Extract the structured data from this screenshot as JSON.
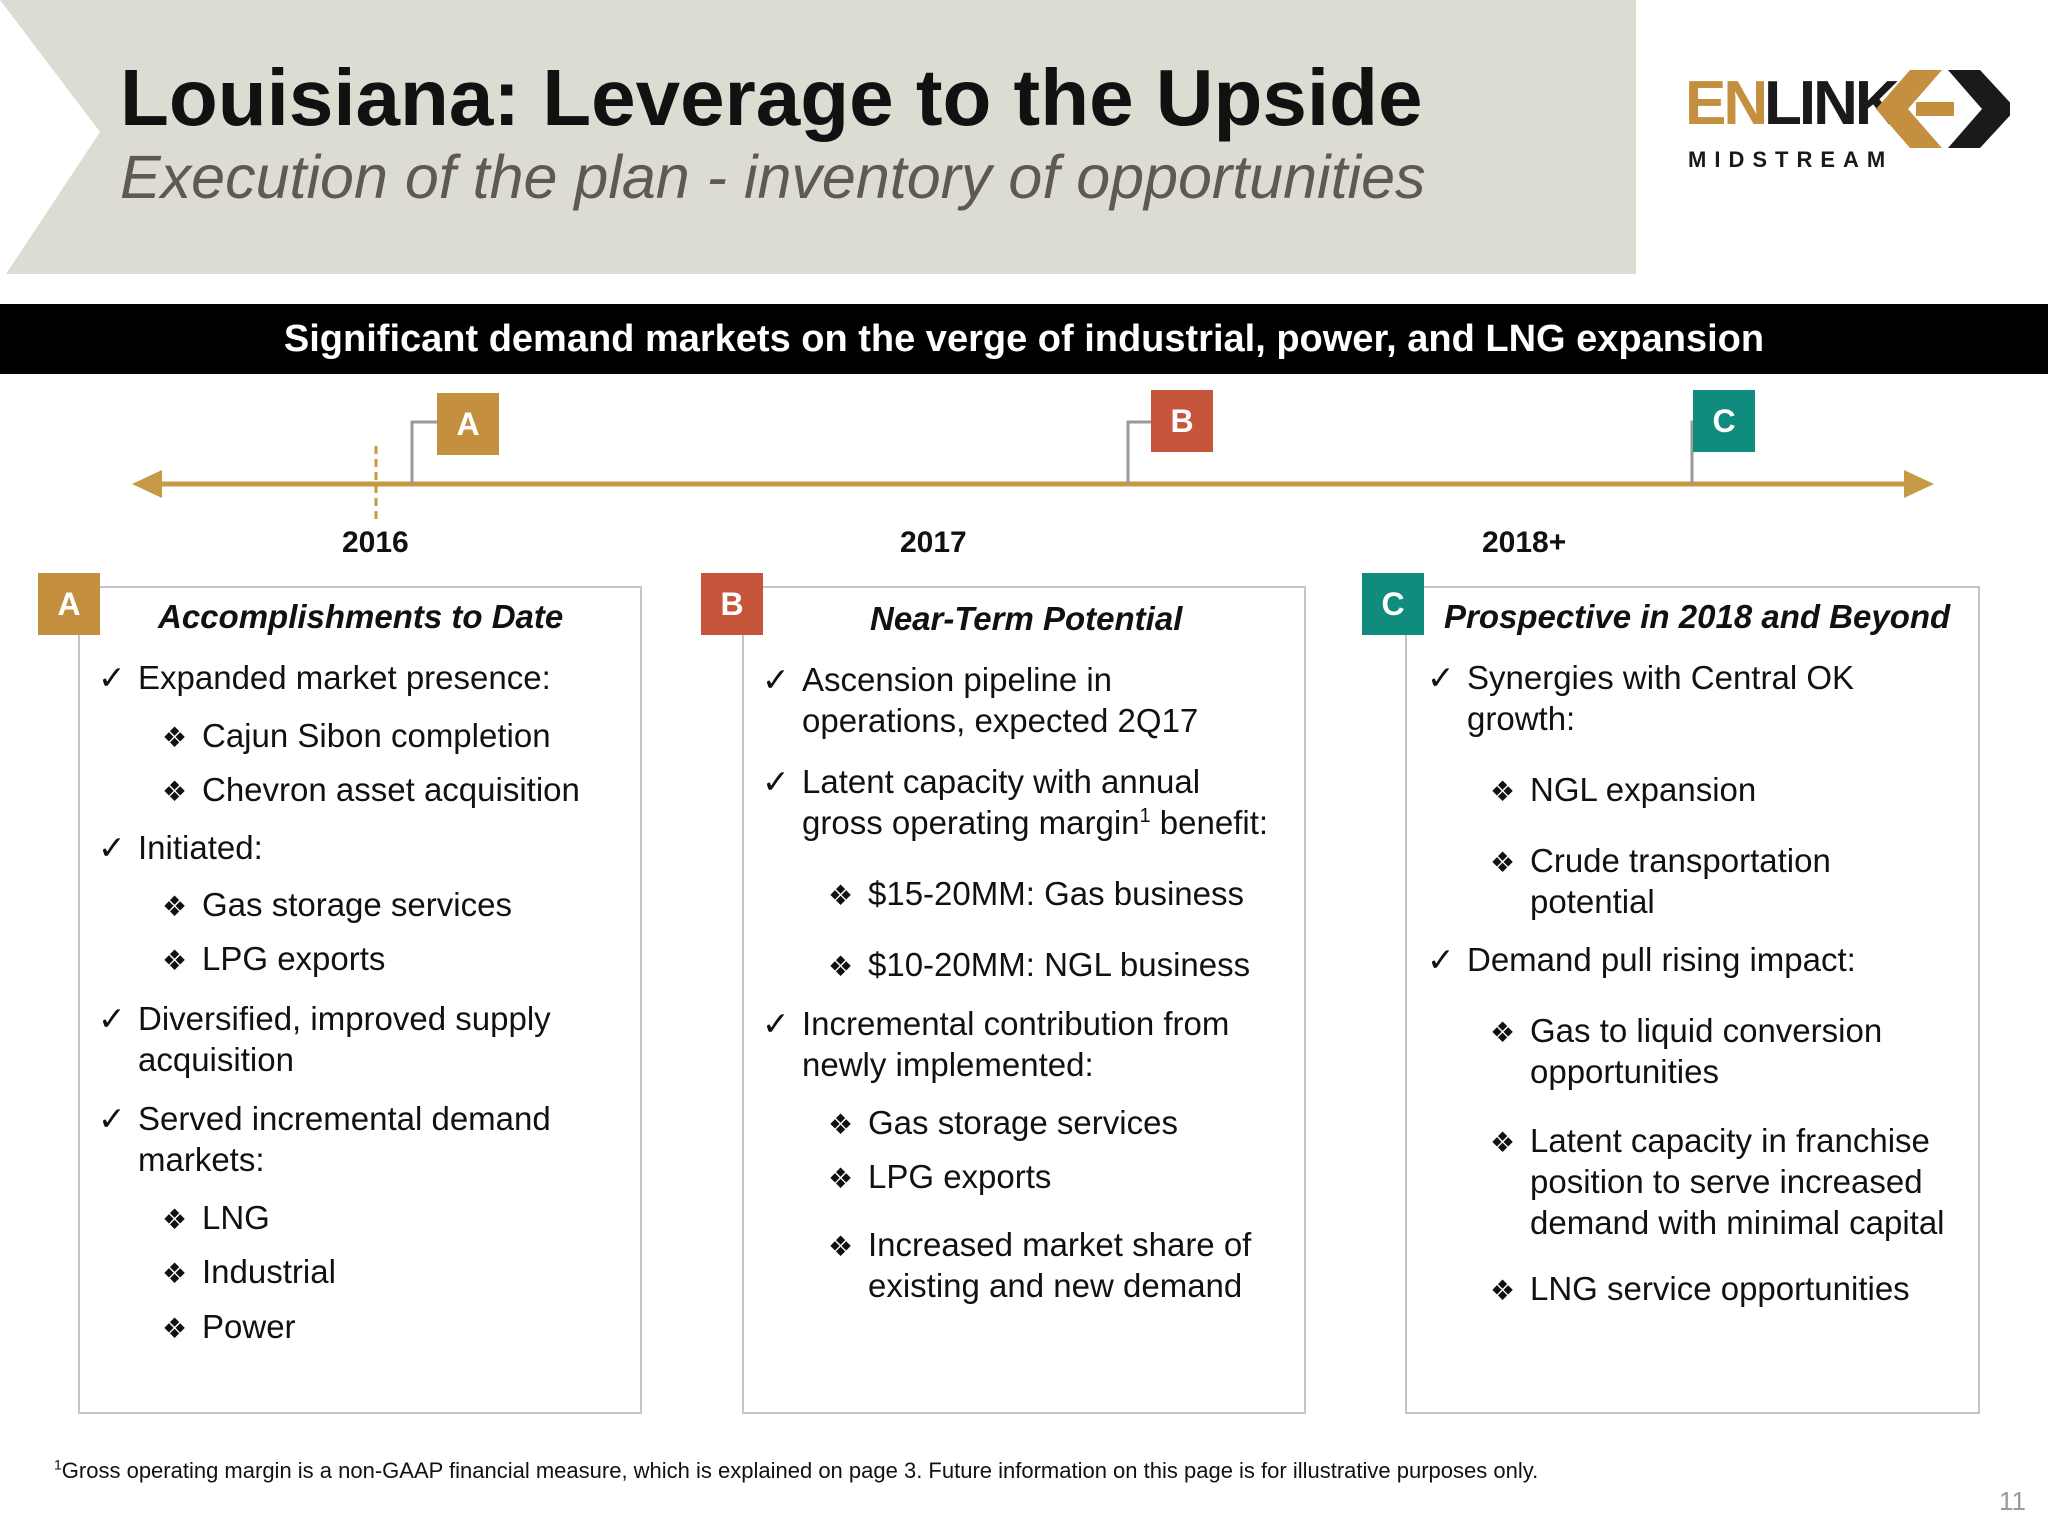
{
  "header": {
    "title": "Louisiana: Leverage to the Upside",
    "subtitle": "Execution of the plan - inventory of opportunities"
  },
  "logo": {
    "word1": "EN",
    "word2": "LINK",
    "tagline": "MIDSTREAM"
  },
  "banner": "Significant  demand markets on the verge of industrial, power, and LNG expansion",
  "timeline": {
    "years": [
      "2016",
      "2017",
      "2018+"
    ],
    "markers": [
      "A",
      "B",
      "C"
    ]
  },
  "colors": {
    "gold": "#c48f3e",
    "red": "#c7553c",
    "teal": "#0f8c7e",
    "timeline": "#c69a45",
    "header_band": "#dddcd3",
    "subtitle": "#5e5a50"
  },
  "panels": [
    {
      "badge": "A",
      "title": "Accomplishments to Date",
      "items": [
        "Expanded market presence:",
        "Cajun Sibon completion",
        "Chevron asset acquisition",
        "Initiated:",
        "Gas storage services",
        "LPG exports",
        "Diversified, improved supply",
        "acquisition",
        "Served incremental demand",
        "markets:",
        "LNG",
        "Industrial",
        "Power"
      ]
    },
    {
      "badge": "B",
      "title": "Near-Term Potential",
      "items": [
        "Ascension pipeline in",
        "operations, expected 2Q17",
        "Latent capacity with annual",
        "gross operating margin",
        "1",
        " benefit:",
        "$15-20MM: Gas business",
        "$10-20MM: NGL  business",
        "Incremental contribution from",
        "newly implemented:",
        "Gas storage services",
        "LPG exports",
        "Increased market share of",
        "existing and new demand"
      ]
    },
    {
      "badge": "C",
      "title": "Prospective in 2018 and Beyond",
      "items": [
        "Synergies with Central OK",
        "growth:",
        "NGL expansion",
        "Crude transportation",
        "potential",
        "Demand pull rising impact:",
        "Gas to liquid conversion",
        "opportunities",
        "Latent capacity in franchise",
        "position to serve increased",
        "demand with minimal capital",
        "LNG service opportunities"
      ]
    }
  ],
  "footnote": {
    "sup": "1",
    "text": "Gross operating margin is a non-GAAP financial measure, which is explained on page 3.  Future information on this page is for illustrative purposes only."
  },
  "page_number": "11"
}
